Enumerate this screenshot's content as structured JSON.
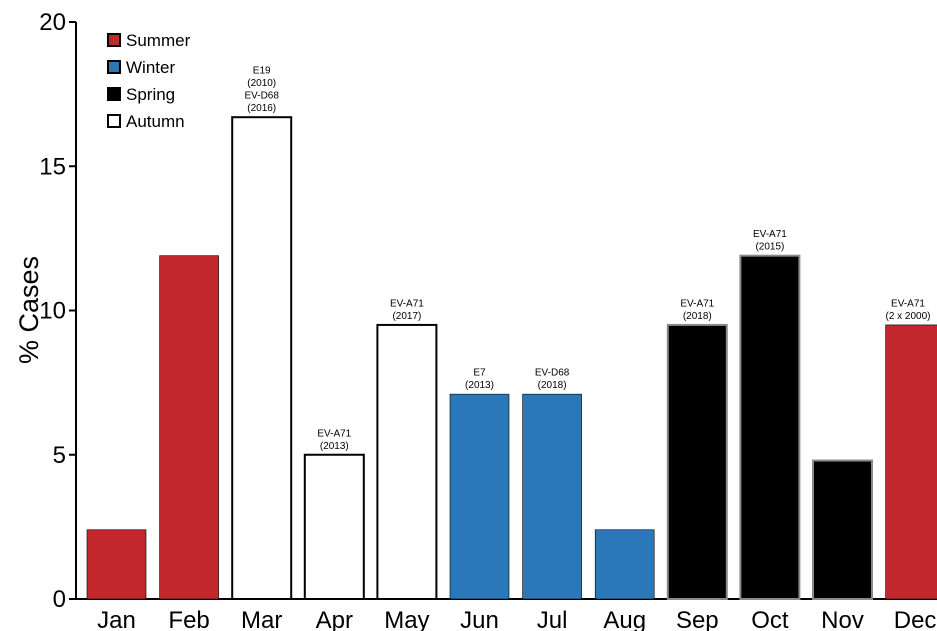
{
  "chart_data": {
    "type": "bar",
    "title": "",
    "xlabel": "",
    "ylabel": "% Cases",
    "ylim": [
      0,
      20
    ],
    "yticks": [
      "0",
      "5",
      "10",
      "15",
      "20"
    ],
    "grid": false,
    "legend_position": "top-left",
    "categories": [
      "Jan",
      "Feb",
      "Mar",
      "Apr",
      "May",
      "Jun",
      "Jul",
      "Aug",
      "Sep",
      "Oct",
      "Nov",
      "Dec"
    ],
    "values": [
      2.4,
      11.9,
      16.7,
      5.0,
      9.5,
      7.1,
      7.1,
      2.4,
      9.5,
      11.9,
      4.8,
      9.5
    ],
    "seasons": [
      "Summer",
      "Summer",
      "Autumn",
      "Autumn",
      "Autumn",
      "Winter",
      "Winter",
      "Winter",
      "Spring",
      "Spring",
      "Spring",
      "Summer"
    ],
    "legend": [
      {
        "name": "Summer",
        "color": "#c1272d"
      },
      {
        "name": "Winter",
        "color": "#2b78b9"
      },
      {
        "name": "Spring",
        "color": "#000000"
      },
      {
        "name": "Autumn",
        "color": "#ffffff"
      }
    ],
    "annotations": [
      {
        "category": "Mar",
        "lines": [
          "E19",
          "(2010)",
          "EV-D68",
          "(2016)"
        ]
      },
      {
        "category": "Apr",
        "lines": [
          "EV-A71",
          "(2013)"
        ]
      },
      {
        "category": "May",
        "lines": [
          "EV-A71",
          "(2017)"
        ]
      },
      {
        "category": "Jun",
        "lines": [
          "E7",
          "(2013)"
        ]
      },
      {
        "category": "Jul",
        "lines": [
          "EV-D68",
          "(2018)"
        ]
      },
      {
        "category": "Sep",
        "lines": [
          "EV-A71",
          "(2018)"
        ]
      },
      {
        "category": "Oct",
        "lines": [
          "EV-A71",
          "(2015)"
        ]
      },
      {
        "category": "Dec",
        "lines": [
          "EV-A71",
          "(2 x 2000)"
        ]
      }
    ]
  }
}
